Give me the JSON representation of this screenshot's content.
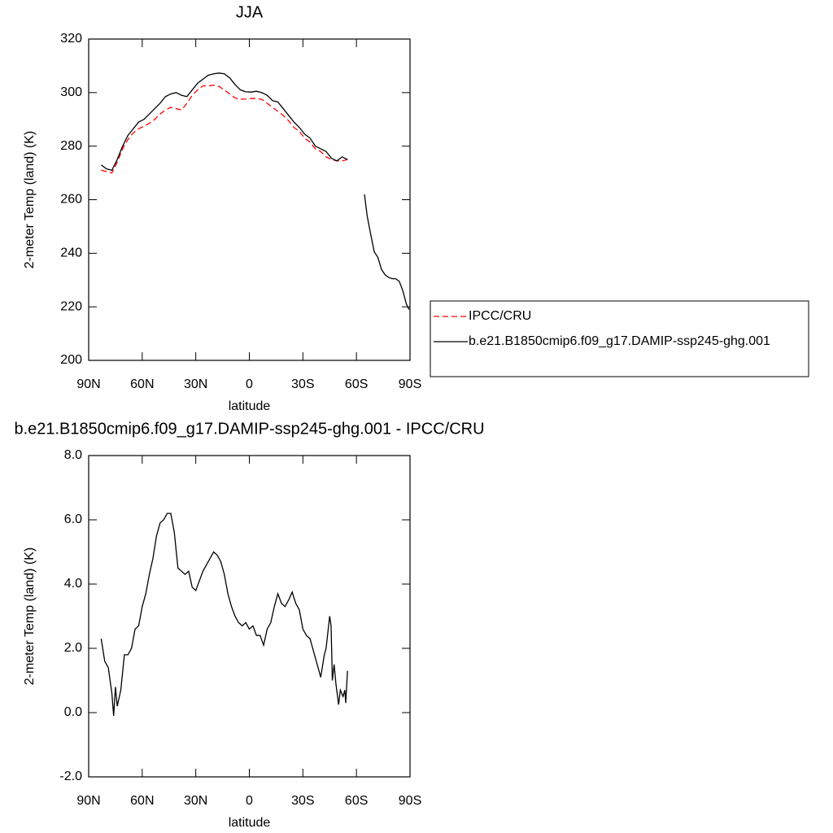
{
  "chart_data": [
    {
      "type": "line",
      "title": "JJA",
      "xlabel": "latitude",
      "ylabel": "2-meter Temp (land) (K)",
      "xlim": [
        90,
        -90
      ],
      "xticks": [
        {
          "value": 90,
          "label": "90N"
        },
        {
          "value": 60,
          "label": "60N"
        },
        {
          "value": 30,
          "label": "30N"
        },
        0,
        {
          "value": -30,
          "label": "30S"
        },
        {
          "value": -60,
          "label": "60S"
        },
        {
          "value": -90,
          "label": "90S"
        }
      ],
      "ylim": [
        200,
        320
      ],
      "yticks": [
        200,
        220,
        240,
        260,
        280,
        300,
        320
      ],
      "legend": "right",
      "series": [
        {
          "name": "IPCC/CRU",
          "color": "#ff0000",
          "dash": true,
          "x": [
            83,
            80,
            77,
            74,
            71,
            68,
            65,
            62,
            59,
            56,
            53,
            50,
            47,
            44,
            41,
            38,
            35,
            32,
            29,
            26,
            23,
            20,
            17,
            14,
            11,
            8,
            5,
            2,
            -1,
            -4,
            -7,
            -10,
            -13,
            -16,
            -19,
            -22,
            -25,
            -28,
            -31,
            -34,
            -37,
            -40,
            -43,
            -46,
            -49,
            -52,
            -55
          ],
          "values": [
            271,
            270.5,
            270,
            274,
            279,
            282.5,
            285,
            286.5,
            287.5,
            288.5,
            290,
            292,
            293.5,
            294.5,
            294,
            293.5,
            296,
            299,
            301,
            302.5,
            302.5,
            302.8,
            302.3,
            301,
            299.5,
            298,
            297.5,
            297.6,
            297.8,
            297.8,
            297.5,
            296,
            294.5,
            293,
            291.5,
            289.5,
            287,
            285.5,
            283,
            281.5,
            279,
            278,
            276,
            275,
            274.5,
            274.5,
            275
          ]
        },
        {
          "name": "b.e21.B1850cmip6.f09_g17.DAMIP-ssp245-ghg.001",
          "color": "#000000",
          "dash": false,
          "x": [
            83,
            80,
            77,
            74,
            71,
            68,
            65,
            62,
            59,
            56,
            53,
            50,
            47,
            44,
            41,
            38,
            35,
            32,
            29,
            26,
            23,
            20,
            17,
            14,
            11,
            8,
            5,
            2,
            -1,
            -4,
            -7,
            -10,
            -13,
            -16,
            -19,
            -22,
            -25,
            -28,
            -31,
            -34,
            -37,
            -40,
            -43,
            -46,
            -49,
            -52,
            -55,
            -60,
            -64.5,
            -66,
            -68,
            -70,
            -72,
            -74,
            -76,
            -78,
            -80,
            -82,
            -84,
            -86,
            -88,
            -89.5
          ],
          "values": [
            273,
            271.5,
            271,
            275,
            280,
            284,
            286.5,
            289,
            290,
            292,
            294,
            296,
            298.5,
            299.5,
            300,
            299,
            298.5,
            301,
            303.5,
            305,
            306.5,
            307,
            307.3,
            307,
            305.5,
            303,
            301,
            300.3,
            300.2,
            300.5,
            300,
            299,
            297,
            296.5,
            294,
            291.5,
            289,
            287,
            284.5,
            283,
            280,
            279,
            278,
            275.5,
            274.5,
            276,
            275,
            null,
            262,
            254,
            247,
            240.5,
            238.5,
            234,
            232,
            231,
            230.5,
            230.5,
            229.5,
            226,
            221,
            219
          ]
        }
      ]
    },
    {
      "type": "line",
      "title": "b.e21.B1850cmip6.f09_g17.DAMIP-ssp245-ghg.001 - IPCC/CRU",
      "xlabel": "latitude",
      "ylabel": "2-meter Temp (land) (K)",
      "xlim": [
        90,
        -90
      ],
      "xticks": [
        {
          "value": 90,
          "label": "90N"
        },
        {
          "value": 60,
          "label": "60N"
        },
        {
          "value": 30,
          "label": "30N"
        },
        0,
        {
          "value": -30,
          "label": "30S"
        },
        {
          "value": -60,
          "label": "60S"
        },
        {
          "value": -90,
          "label": "90S"
        }
      ],
      "ylim": [
        -2,
        8
      ],
      "yticks": [
        {
          "value": -2,
          "label": "-2.0"
        },
        {
          "value": 0,
          "label": "0.0"
        },
        {
          "value": 2,
          "label": "2.0"
        },
        {
          "value": 4,
          "label": "4.0"
        },
        {
          "value": 6,
          "label": "6.0"
        },
        {
          "value": 8,
          "label": "8.0"
        }
      ],
      "series": [
        {
          "color": "#000000",
          "dash": false,
          "x": [
            83,
            81,
            79,
            77,
            76,
            75,
            74,
            72,
            70,
            68,
            66,
            64,
            62,
            60,
            58,
            56,
            54,
            52,
            50,
            48,
            46,
            44,
            42,
            40,
            38,
            36,
            34,
            32,
            30,
            28,
            26,
            24,
            22,
            20,
            18,
            16,
            14,
            12,
            10,
            8,
            6,
            4,
            2,
            0,
            -2,
            -4,
            -6,
            -8,
            -10,
            -12,
            -14,
            -16,
            -18,
            -20,
            -22,
            -24,
            -26,
            -28,
            -30,
            -32,
            -34,
            -36,
            -38,
            -40,
            -42,
            -43,
            -45,
            -45.8,
            -46.5,
            -47.5,
            -48.5,
            -50,
            -51,
            -52.5,
            -53.5,
            -54,
            -55
          ],
          "values": [
            2.3,
            1.6,
            1.4,
            0.6,
            -0.1,
            0.8,
            0.2,
            0.7,
            1.8,
            1.8,
            2.0,
            2.6,
            2.7,
            3.3,
            3.7,
            4.3,
            4.8,
            5.5,
            5.9,
            6.0,
            6.2,
            6.2,
            5.6,
            4.5,
            4.4,
            4.3,
            4.4,
            3.9,
            3.8,
            4.1,
            4.4,
            4.6,
            4.8,
            5.0,
            4.9,
            4.7,
            4.3,
            3.7,
            3.3,
            3.0,
            2.8,
            2.7,
            2.8,
            2.6,
            2.7,
            2.4,
            2.4,
            2.1,
            2.6,
            2.8,
            3.3,
            3.7,
            3.4,
            3.3,
            3.5,
            3.75,
            3.4,
            3.2,
            2.6,
            2.4,
            2.3,
            1.9,
            1.5,
            1.1,
            1.8,
            2.0,
            3.0,
            2.7,
            1.0,
            1.5,
            0.9,
            0.25,
            0.7,
            0.5,
            0.7,
            0.3,
            1.3
          ]
        }
      ]
    }
  ]
}
